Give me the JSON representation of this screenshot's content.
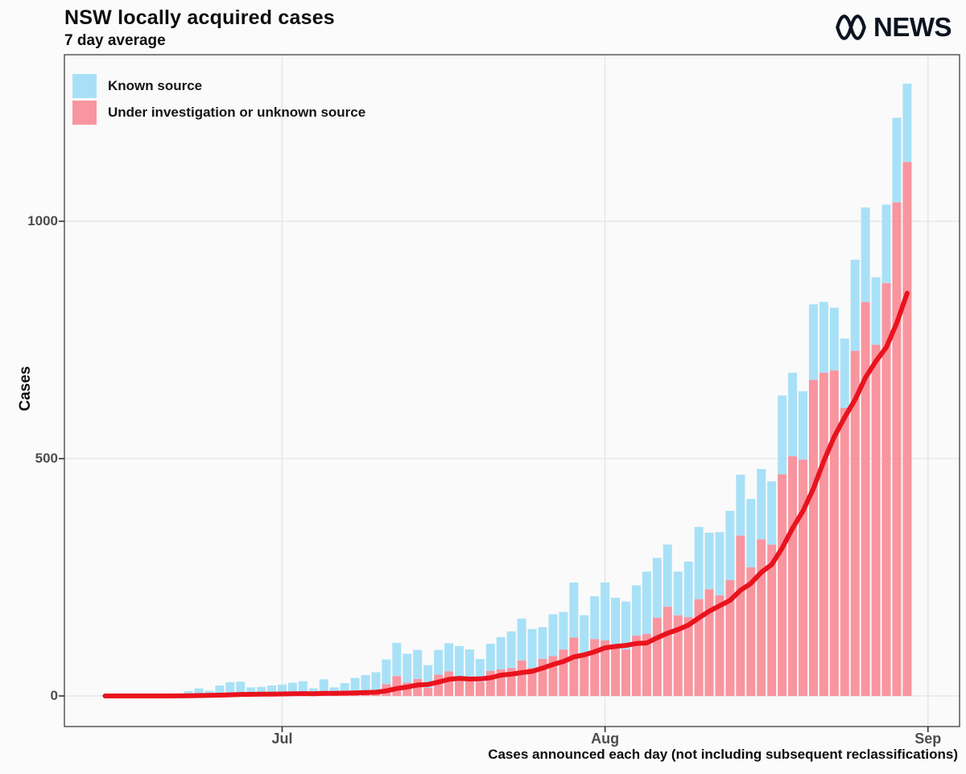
{
  "header": {
    "title": "NSW locally acquired cases",
    "subtitle": "7 day average",
    "brand": "NEWS"
  },
  "legend": [
    {
      "label": "Known source",
      "color": "#a8e1f7"
    },
    {
      "label": "Under investigation or unknown source",
      "color": "#f8959f"
    }
  ],
  "axes": {
    "y_title": "Cases",
    "y_ticks": [
      0,
      500,
      1000
    ],
    "x_ticks": [
      {
        "label": "Jul",
        "day_index": 17
      },
      {
        "label": "Aug",
        "day_index": 48
      },
      {
        "label": "Sep",
        "day_index": 79
      }
    ],
    "caption": "Cases announced each day (not including subsequent reclassifications)"
  },
  "colors": {
    "known": "#a8e1f7",
    "unknown": "#f8959f",
    "line": "#e9131d",
    "grid": "#e4e4e4",
    "panel_bg": "#fafafa",
    "border": "#4d4d4d",
    "tick_text": "#4d4d4d"
  },
  "chart_data": {
    "type": "bar",
    "stacked": true,
    "title": "NSW locally acquired cases",
    "subtitle": "7 day average",
    "ylabel": "Cases",
    "ylim": [
      0,
      1350
    ],
    "grid": "major",
    "legend_position": "inside top-left",
    "x_start": "Jun 14",
    "x_end": "Aug 30",
    "categories": [
      "Jun 14",
      "Jun 15",
      "Jun 16",
      "Jun 17",
      "Jun 18",
      "Jun 19",
      "Jun 20",
      "Jun 21",
      "Jun 22",
      "Jun 23",
      "Jun 24",
      "Jun 25",
      "Jun 26",
      "Jun 27",
      "Jun 28",
      "Jun 29",
      "Jun 30",
      "Jul 1",
      "Jul 2",
      "Jul 3",
      "Jul 4",
      "Jul 5",
      "Jul 6",
      "Jul 7",
      "Jul 8",
      "Jul 9",
      "Jul 10",
      "Jul 11",
      "Jul 12",
      "Jul 13",
      "Jul 14",
      "Jul 15",
      "Jul 16",
      "Jul 17",
      "Jul 18",
      "Jul 19",
      "Jul 20",
      "Jul 21",
      "Jul 22",
      "Jul 23",
      "Jul 24",
      "Jul 25",
      "Jul 26",
      "Jul 27",
      "Jul 28",
      "Jul 29",
      "Jul 30",
      "Jul 31",
      "Aug 1",
      "Aug 2",
      "Aug 3",
      "Aug 4",
      "Aug 5",
      "Aug 6",
      "Aug 7",
      "Aug 8",
      "Aug 9",
      "Aug 10",
      "Aug 11",
      "Aug 12",
      "Aug 13",
      "Aug 14",
      "Aug 15",
      "Aug 16",
      "Aug 17",
      "Aug 18",
      "Aug 19",
      "Aug 20",
      "Aug 21",
      "Aug 22",
      "Aug 23",
      "Aug 24",
      "Aug 25",
      "Aug 26",
      "Aug 27",
      "Aug 28",
      "Aug 29",
      "Aug 30"
    ],
    "series": [
      {
        "name": "Known source",
        "values": [
          2,
          1,
          2,
          3,
          2,
          4,
          2,
          3,
          8,
          13,
          9,
          18,
          24,
          25,
          15,
          15,
          18,
          19,
          22,
          24,
          12,
          27,
          13,
          20,
          30,
          33,
          39,
          52,
          70,
          61,
          61,
          48,
          52,
          59,
          65,
          67,
          48,
          57,
          68,
          77,
          88,
          82,
          67,
          88,
          79,
          116,
          81,
          90,
          122,
          107,
          101,
          106,
          131,
          126,
          131,
          92,
          117,
          152,
          119,
          133,
          146,
          128,
          144,
          148,
          133,
          166,
          176,
          144,
          159,
          149,
          132,
          146,
          192,
          199,
          142,
          165,
          178,
          165
        ]
      },
      {
        "name": "Under investigation or unknown source",
        "values": [
          0,
          0,
          0,
          0,
          0,
          0,
          0,
          1,
          2,
          3,
          2,
          4,
          5,
          5,
          3,
          4,
          4,
          5,
          6,
          7,
          4,
          8,
          5,
          7,
          8,
          11,
          11,
          25,
          42,
          28,
          36,
          17,
          45,
          52,
          40,
          31,
          30,
          53,
          56,
          59,
          75,
          59,
          78,
          84,
          98,
          123,
          89,
          120,
          117,
          100,
          98,
          127,
          131,
          165,
          188,
          170,
          166,
          204,
          225,
          212,
          244,
          338,
          271,
          330,
          319,
          467,
          505,
          498,
          666,
          681,
          686,
          607,
          727,
          830,
          740,
          870,
          1040,
          1125
        ]
      }
    ],
    "line_series": {
      "name": "7 day average",
      "basis": "trailing 7-day mean of 'Under investigation or unknown source'",
      "color": "#e9131d",
      "end_value_approx": 848
    }
  }
}
